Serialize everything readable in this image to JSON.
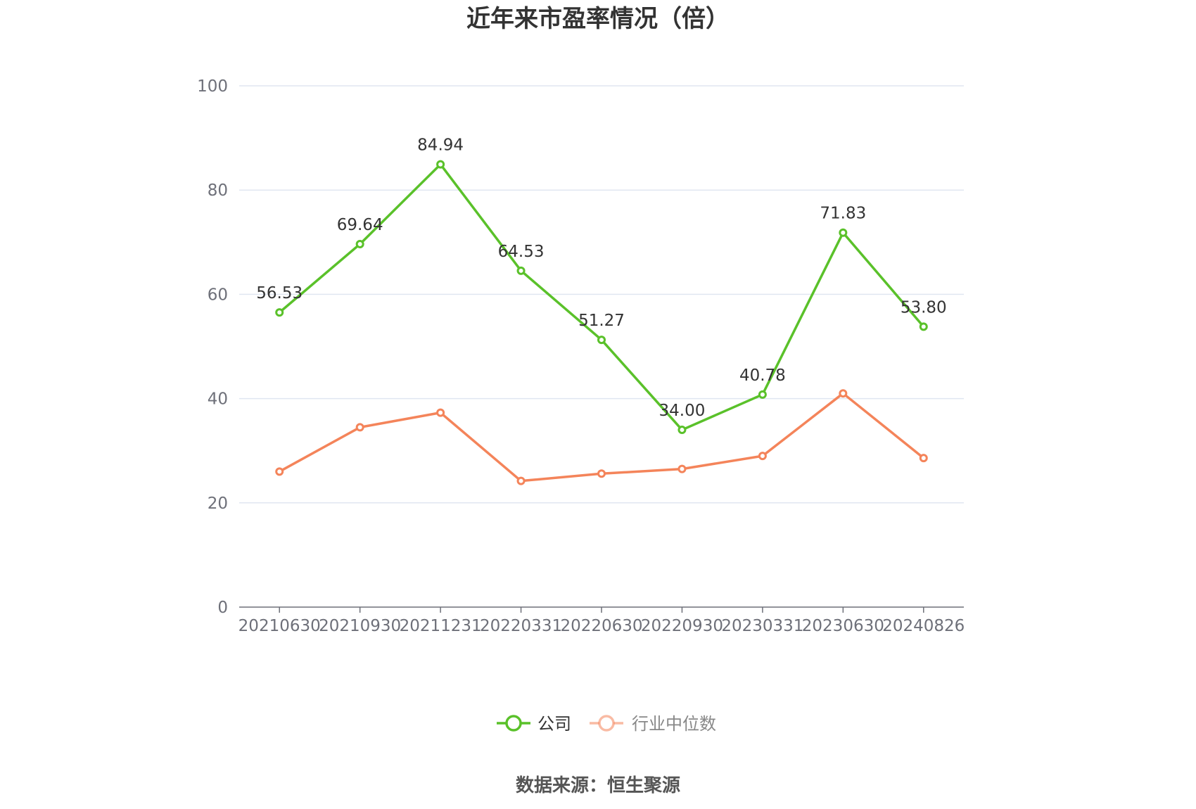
{
  "chart_data": {
    "type": "line",
    "title": "近年来市盈率情况（倍）",
    "categories": [
      "20210630",
      "20210930",
      "20211231",
      "20220331",
      "20220630",
      "20220930",
      "20230331",
      "20230630",
      "20240826"
    ],
    "series": [
      {
        "name": "公司",
        "color": "#5ac12a",
        "values": [
          56.53,
          69.64,
          84.94,
          64.53,
          51.27,
          34.0,
          40.78,
          71.83,
          53.8
        ],
        "labels": [
          "56.53",
          "69.64",
          "84.94",
          "64.53",
          "51.27",
          "34.00",
          "40.78",
          "71.83",
          "53.80"
        ]
      },
      {
        "name": "行业中位数",
        "color": "#f4845a",
        "values": [
          26.0,
          34.5,
          37.3,
          24.2,
          25.6,
          26.5,
          29.0,
          41.0,
          28.6
        ]
      }
    ],
    "y_ticks": [
      "0",
      "20",
      "40",
      "60",
      "80",
      "100"
    ],
    "ylim": [
      0,
      100
    ],
    "grid": true,
    "legend_position": "bottom-center"
  },
  "source": "数据来源：恒生聚源"
}
